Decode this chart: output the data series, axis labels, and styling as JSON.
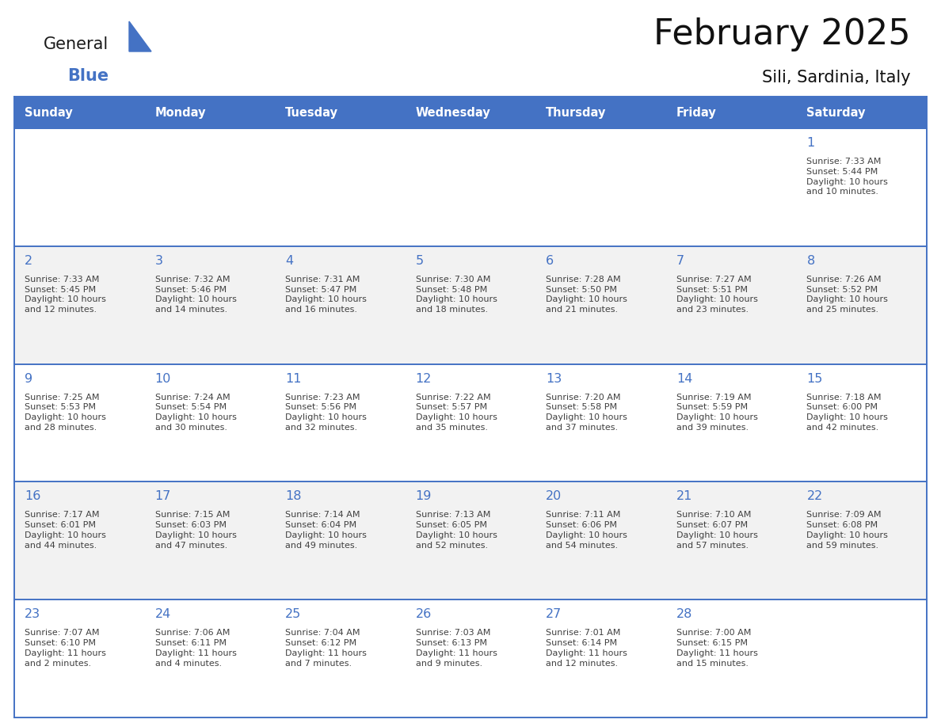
{
  "title": "February 2025",
  "subtitle": "Sili, Sardinia, Italy",
  "days_of_week": [
    "Sunday",
    "Monday",
    "Tuesday",
    "Wednesday",
    "Thursday",
    "Friday",
    "Saturday"
  ],
  "header_bg": "#4472C4",
  "header_text": "#FFFFFF",
  "cell_bg_even": "#FFFFFF",
  "cell_bg_odd": "#F2F2F2",
  "cell_border": "#4472C4",
  "day_num_color": "#4472C4",
  "text_color": "#404040",
  "logo_general_color": "#1a1a1a",
  "logo_blue_color": "#4472C4",
  "weeks": [
    {
      "days": [
        {
          "date": null,
          "sunrise": null,
          "sunset": null,
          "daylight": null
        },
        {
          "date": null,
          "sunrise": null,
          "sunset": null,
          "daylight": null
        },
        {
          "date": null,
          "sunrise": null,
          "sunset": null,
          "daylight": null
        },
        {
          "date": null,
          "sunrise": null,
          "sunset": null,
          "daylight": null
        },
        {
          "date": null,
          "sunrise": null,
          "sunset": null,
          "daylight": null
        },
        {
          "date": null,
          "sunrise": null,
          "sunset": null,
          "daylight": null
        },
        {
          "date": 1,
          "sunrise": "7:33 AM",
          "sunset": "5:44 PM",
          "daylight": "10 hours\nand 10 minutes."
        }
      ]
    },
    {
      "days": [
        {
          "date": 2,
          "sunrise": "7:33 AM",
          "sunset": "5:45 PM",
          "daylight": "10 hours\nand 12 minutes."
        },
        {
          "date": 3,
          "sunrise": "7:32 AM",
          "sunset": "5:46 PM",
          "daylight": "10 hours\nand 14 minutes."
        },
        {
          "date": 4,
          "sunrise": "7:31 AM",
          "sunset": "5:47 PM",
          "daylight": "10 hours\nand 16 minutes."
        },
        {
          "date": 5,
          "sunrise": "7:30 AM",
          "sunset": "5:48 PM",
          "daylight": "10 hours\nand 18 minutes."
        },
        {
          "date": 6,
          "sunrise": "7:28 AM",
          "sunset": "5:50 PM",
          "daylight": "10 hours\nand 21 minutes."
        },
        {
          "date": 7,
          "sunrise": "7:27 AM",
          "sunset": "5:51 PM",
          "daylight": "10 hours\nand 23 minutes."
        },
        {
          "date": 8,
          "sunrise": "7:26 AM",
          "sunset": "5:52 PM",
          "daylight": "10 hours\nand 25 minutes."
        }
      ]
    },
    {
      "days": [
        {
          "date": 9,
          "sunrise": "7:25 AM",
          "sunset": "5:53 PM",
          "daylight": "10 hours\nand 28 minutes."
        },
        {
          "date": 10,
          "sunrise": "7:24 AM",
          "sunset": "5:54 PM",
          "daylight": "10 hours\nand 30 minutes."
        },
        {
          "date": 11,
          "sunrise": "7:23 AM",
          "sunset": "5:56 PM",
          "daylight": "10 hours\nand 32 minutes."
        },
        {
          "date": 12,
          "sunrise": "7:22 AM",
          "sunset": "5:57 PM",
          "daylight": "10 hours\nand 35 minutes."
        },
        {
          "date": 13,
          "sunrise": "7:20 AM",
          "sunset": "5:58 PM",
          "daylight": "10 hours\nand 37 minutes."
        },
        {
          "date": 14,
          "sunrise": "7:19 AM",
          "sunset": "5:59 PM",
          "daylight": "10 hours\nand 39 minutes."
        },
        {
          "date": 15,
          "sunrise": "7:18 AM",
          "sunset": "6:00 PM",
          "daylight": "10 hours\nand 42 minutes."
        }
      ]
    },
    {
      "days": [
        {
          "date": 16,
          "sunrise": "7:17 AM",
          "sunset": "6:01 PM",
          "daylight": "10 hours\nand 44 minutes."
        },
        {
          "date": 17,
          "sunrise": "7:15 AM",
          "sunset": "6:03 PM",
          "daylight": "10 hours\nand 47 minutes."
        },
        {
          "date": 18,
          "sunrise": "7:14 AM",
          "sunset": "6:04 PM",
          "daylight": "10 hours\nand 49 minutes."
        },
        {
          "date": 19,
          "sunrise": "7:13 AM",
          "sunset": "6:05 PM",
          "daylight": "10 hours\nand 52 minutes."
        },
        {
          "date": 20,
          "sunrise": "7:11 AM",
          "sunset": "6:06 PM",
          "daylight": "10 hours\nand 54 minutes."
        },
        {
          "date": 21,
          "sunrise": "7:10 AM",
          "sunset": "6:07 PM",
          "daylight": "10 hours\nand 57 minutes."
        },
        {
          "date": 22,
          "sunrise": "7:09 AM",
          "sunset": "6:08 PM",
          "daylight": "10 hours\nand 59 minutes."
        }
      ]
    },
    {
      "days": [
        {
          "date": 23,
          "sunrise": "7:07 AM",
          "sunset": "6:10 PM",
          "daylight": "11 hours\nand 2 minutes."
        },
        {
          "date": 24,
          "sunrise": "7:06 AM",
          "sunset": "6:11 PM",
          "daylight": "11 hours\nand 4 minutes."
        },
        {
          "date": 25,
          "sunrise": "7:04 AM",
          "sunset": "6:12 PM",
          "daylight": "11 hours\nand 7 minutes."
        },
        {
          "date": 26,
          "sunrise": "7:03 AM",
          "sunset": "6:13 PM",
          "daylight": "11 hours\nand 9 minutes."
        },
        {
          "date": 27,
          "sunrise": "7:01 AM",
          "sunset": "6:14 PM",
          "daylight": "11 hours\nand 12 minutes."
        },
        {
          "date": 28,
          "sunrise": "7:00 AM",
          "sunset": "6:15 PM",
          "daylight": "11 hours\nand 15 minutes."
        },
        {
          "date": null,
          "sunrise": null,
          "sunset": null,
          "daylight": null
        }
      ]
    }
  ]
}
